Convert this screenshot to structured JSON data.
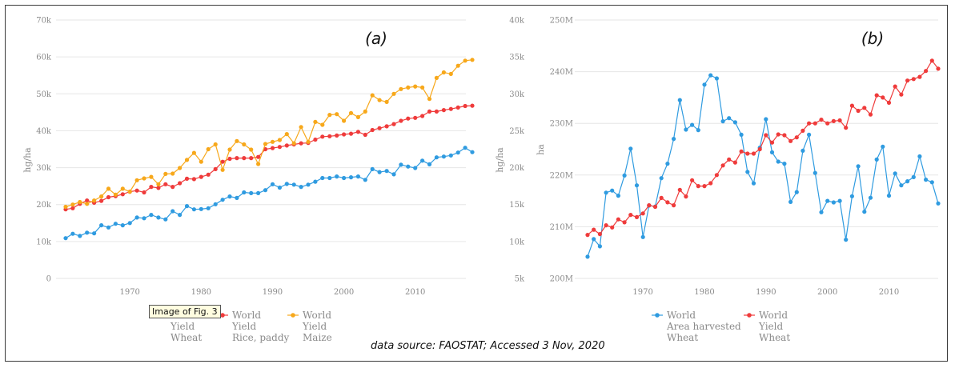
{
  "source_note": "data source: FAOSTAT; Accessed 3 Nov, 2020",
  "tooltip": "Image of Fig. 3",
  "colors": {
    "blue": "#2f9be0",
    "red": "#ef3b3b",
    "orange": "#f7a81b",
    "grid": "#e6e6e6"
  },
  "chart_data": [
    {
      "type": "line",
      "panel_label": "(a)",
      "ylabel": "hg/ha",
      "xlim": [
        1961,
        2018
      ],
      "ylim": [
        0,
        70000
      ],
      "x_ticks": [
        1970,
        1980,
        1990,
        2000,
        2010
      ],
      "y_ticks": [
        0,
        10000,
        20000,
        30000,
        40000,
        50000,
        60000,
        70000
      ],
      "y_tick_labels": [
        "0",
        "10k",
        "20k",
        "30k",
        "40k",
        "50k",
        "60k",
        "70k"
      ],
      "legend_position": "bottom-left",
      "series": [
        {
          "legend": [
            "World",
            "Yield",
            "Wheat"
          ],
          "color": "#2f9be0",
          "x": [
            1961,
            1962,
            1963,
            1964,
            1965,
            1966,
            1967,
            1968,
            1969,
            1970,
            1971,
            1972,
            1973,
            1974,
            1975,
            1976,
            1977,
            1978,
            1979,
            1980,
            1981,
            1982,
            1983,
            1984,
            1985,
            1986,
            1987,
            1988,
            1989,
            1990,
            1991,
            1992,
            1993,
            1994,
            1995,
            1996,
            1997,
            1998,
            1999,
            2000,
            2001,
            2002,
            2003,
            2004,
            2005,
            2006,
            2007,
            2008,
            2009,
            2010,
            2011,
            2012,
            2013,
            2014,
            2015,
            2016,
            2017,
            2018
          ],
          "y": [
            10900,
            12100,
            11500,
            12400,
            12200,
            14400,
            13800,
            14800,
            14400,
            15000,
            16500,
            16300,
            17200,
            16500,
            16000,
            18200,
            17200,
            19600,
            18700,
            18800,
            19000,
            20100,
            21300,
            22200,
            21800,
            23300,
            23100,
            23100,
            23900,
            25500,
            24600,
            25600,
            25400,
            24800,
            25400,
            26200,
            27200,
            27200,
            27600,
            27200,
            27400,
            27600,
            26700,
            29600,
            28800,
            29100,
            28200,
            30800,
            30300,
            29900,
            31900,
            30900,
            32800,
            33000,
            33300,
            34100,
            35400,
            34200
          ]
        },
        {
          "legend": [
            "World",
            "Yield",
            "Rice, paddy"
          ],
          "color": "#ef3b3b",
          "x": [
            1961,
            1962,
            1963,
            1964,
            1965,
            1966,
            1967,
            1968,
            1969,
            1970,
            1971,
            1972,
            1973,
            1974,
            1975,
            1976,
            1977,
            1978,
            1979,
            1980,
            1981,
            1982,
            1983,
            1984,
            1985,
            1986,
            1987,
            1988,
            1989,
            1990,
            1991,
            1992,
            1993,
            1994,
            1995,
            1996,
            1997,
            1998,
            1999,
            2000,
            2001,
            2002,
            2003,
            2004,
            2005,
            2006,
            2007,
            2008,
            2009,
            2010,
            2011,
            2012,
            2013,
            2014,
            2015,
            2016,
            2017,
            2018
          ],
          "y": [
            18700,
            19000,
            20200,
            21100,
            20500,
            21000,
            22000,
            22300,
            22800,
            23500,
            23800,
            23300,
            24800,
            24500,
            25500,
            24800,
            25800,
            27000,
            26900,
            27500,
            28100,
            29600,
            31600,
            32400,
            32600,
            32600,
            32600,
            32900,
            35000,
            35300,
            35600,
            36000,
            36300,
            36600,
            36700,
            37600,
            38400,
            38500,
            38700,
            39000,
            39200,
            39700,
            38900,
            40200,
            40700,
            41200,
            41800,
            42700,
            43300,
            43500,
            44000,
            45200,
            45200,
            45600,
            45900,
            46300,
            46700,
            46800
          ]
        },
        {
          "legend": [
            "World",
            "Yield",
            "Maize"
          ],
          "color": "#f7a81b",
          "x": [
            1961,
            1962,
            1963,
            1964,
            1965,
            1966,
            1967,
            1968,
            1969,
            1970,
            1971,
            1972,
            1973,
            1974,
            1975,
            1976,
            1977,
            1978,
            1979,
            1980,
            1981,
            1982,
            1983,
            1984,
            1985,
            1986,
            1987,
            1988,
            1989,
            1990,
            1991,
            1992,
            1993,
            1994,
            1995,
            1996,
            1997,
            1998,
            1999,
            2000,
            2001,
            2002,
            2003,
            2004,
            2005,
            2006,
            2007,
            2008,
            2009,
            2010,
            2011,
            2012,
            2013,
            2014,
            2015,
            2016,
            2017,
            2018
          ],
          "y": [
            19400,
            20000,
            20700,
            20200,
            21100,
            22200,
            24300,
            22700,
            24300,
            23500,
            26600,
            27100,
            27500,
            25500,
            28300,
            28400,
            29900,
            32100,
            34000,
            31600,
            35000,
            36300,
            29400,
            34900,
            37200,
            36300,
            34900,
            31000,
            36400,
            37000,
            37500,
            39100,
            36600,
            41000,
            37000,
            42400,
            41600,
            44300,
            44500,
            42700,
            44800,
            43700,
            45200,
            49600,
            48300,
            47800,
            50000,
            51300,
            51700,
            52000,
            51700,
            48600,
            54300,
            55800,
            55400,
            57600,
            59000,
            59200
          ]
        }
      ]
    },
    {
      "type": "line",
      "panel_label": "(b)",
      "ylabel": "ha",
      "xlim": [
        1961,
        2018
      ],
      "y_left_lim": [
        5000,
        40000
      ],
      "y_left_ticks": [
        5000,
        10000,
        15000,
        20000,
        25000,
        30000,
        35000,
        40000
      ],
      "y_left_tick_labels": [
        "5k",
        "10k",
        "15k",
        "20k",
        "25k",
        "30k",
        "35k",
        "40k"
      ],
      "y_right_lim": [
        200000000,
        250000000
      ],
      "y_right_ticks": [
        200000000,
        210000000,
        220000000,
        230000000,
        240000000,
        250000000
      ],
      "y_right_tick_labels": [
        "200M",
        "210M",
        "220M",
        "230M",
        "240M",
        "250M"
      ],
      "x_ticks": [
        1970,
        1980,
        1990,
        2000,
        2010
      ],
      "legend_position": "bottom-center",
      "series": [
        {
          "legend": [
            "World",
            "Area harvested",
            "Wheat"
          ],
          "color": "#2f9be0",
          "axis": "right",
          "x": [
            1961,
            1962,
            1963,
            1964,
            1965,
            1966,
            1967,
            1968,
            1969,
            1970,
            1971,
            1972,
            1973,
            1974,
            1975,
            1976,
            1977,
            1978,
            1979,
            1980,
            1981,
            1982,
            1983,
            1984,
            1985,
            1986,
            1987,
            1988,
            1989,
            1990,
            1991,
            1992,
            1993,
            1994,
            1995,
            1996,
            1997,
            1998,
            1999,
            2000,
            2001,
            2002,
            2003,
            2004,
            2005,
            2006,
            2007,
            2008,
            2009,
            2010,
            2011,
            2012,
            2013,
            2014,
            2015,
            2016,
            2017,
            2018
          ],
          "y": [
            204200000,
            207600000,
            206200000,
            216600000,
            217000000,
            216000000,
            219900000,
            225100000,
            218000000,
            208000000,
            214100000,
            213900000,
            219400000,
            222200000,
            227000000,
            234500000,
            228800000,
            229700000,
            228700000,
            237500000,
            239300000,
            238700000,
            230400000,
            231000000,
            230200000,
            227800000,
            220600000,
            218400000,
            225300000,
            230800000,
            224400000,
            222600000,
            222200000,
            214800000,
            216700000,
            224700000,
            227800000,
            220400000,
            212800000,
            215000000,
            214700000,
            215000000,
            207500000,
            215900000,
            221700000,
            212900000,
            215600000,
            223000000,
            225500000,
            216000000,
            220300000,
            218000000,
            218800000,
            219600000,
            223600000,
            219100000,
            218600000,
            214500000
          ]
        },
        {
          "legend": [
            "World",
            "Yield",
            "Wheat"
          ],
          "color": "#ef3b3b",
          "axis": "left",
          "x": [
            1961,
            1962,
            1963,
            1964,
            1965,
            1966,
            1967,
            1968,
            1969,
            1970,
            1971,
            1972,
            1973,
            1974,
            1975,
            1976,
            1977,
            1978,
            1979,
            1980,
            1981,
            1982,
            1983,
            1984,
            1985,
            1986,
            1987,
            1988,
            1989,
            1990,
            1991,
            1992,
            1993,
            1994,
            1995,
            1996,
            1997,
            1998,
            1999,
            2000,
            2001,
            2002,
            2003,
            2004,
            2005,
            2006,
            2007,
            2008,
            2009,
            2010,
            2011,
            2012,
            2013,
            2014,
            2015,
            2016,
            2017,
            2018
          ],
          "y": [
            10900,
            11600,
            11000,
            12200,
            11900,
            13000,
            12600,
            13600,
            13300,
            13800,
            14900,
            14700,
            15900,
            15300,
            14900,
            17000,
            16100,
            18300,
            17500,
            17500,
            17900,
            19000,
            20300,
            21100,
            20700,
            22200,
            21900,
            21900,
            22500,
            24400,
            23400,
            24500,
            24400,
            23600,
            24100,
            25000,
            26000,
            26000,
            26500,
            26000,
            26300,
            26400,
            25400,
            28400,
            27700,
            28100,
            27200,
            29800,
            29500,
            28800,
            31000,
            29900,
            31800,
            32000,
            32300,
            33100,
            34500,
            33400
          ]
        }
      ]
    }
  ]
}
